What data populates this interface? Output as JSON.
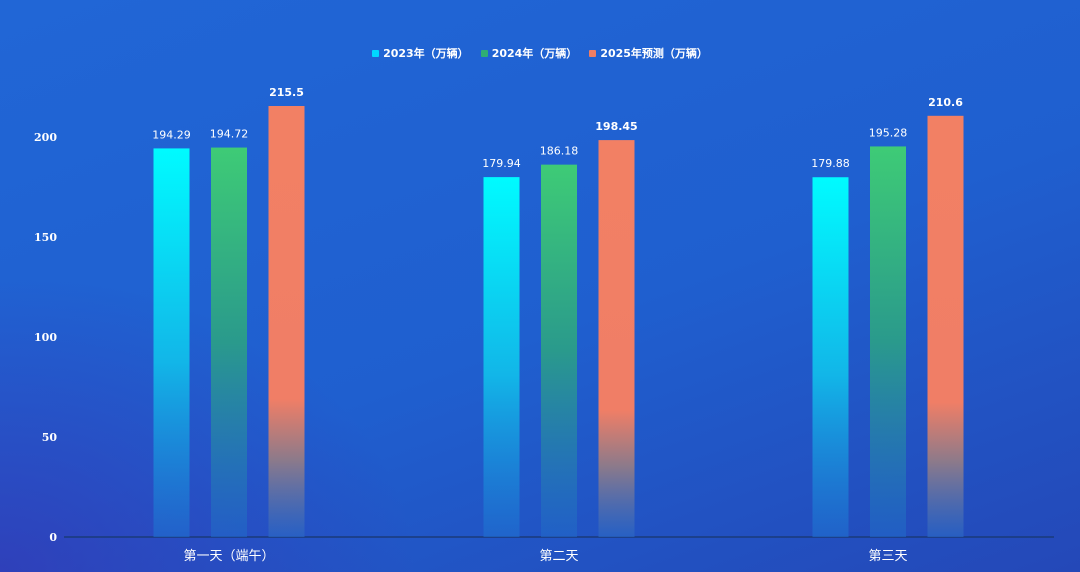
{
  "chart_data": {
    "type": "bar",
    "categories": [
      "第一天（端午）",
      "第二天",
      "第三天"
    ],
    "series": [
      {
        "name": "2023年（万辆）",
        "values": [
          194.29,
          179.94,
          179.88
        ],
        "color": "#00f6ff"
      },
      {
        "name": "2024年（万辆）",
        "values": [
          194.72,
          186.18,
          195.28
        ],
        "color": "#3cc87a"
      },
      {
        "name": "2025年预测（万辆）",
        "values": [
          215.5,
          198.45,
          210.6
        ],
        "color": "#f07e64"
      }
    ],
    "value_labels": [
      [
        "194.29",
        "179.94",
        "179.88"
      ],
      [
        "194.72",
        "186.18",
        "195.28"
      ],
      [
        "215.5",
        "198.45",
        "210.6"
      ]
    ],
    "y_ticks": [
      "0",
      "50",
      "100",
      "150",
      "200"
    ],
    "ylim": [
      0,
      230
    ],
    "legend_position": "top-center",
    "grid": false
  }
}
